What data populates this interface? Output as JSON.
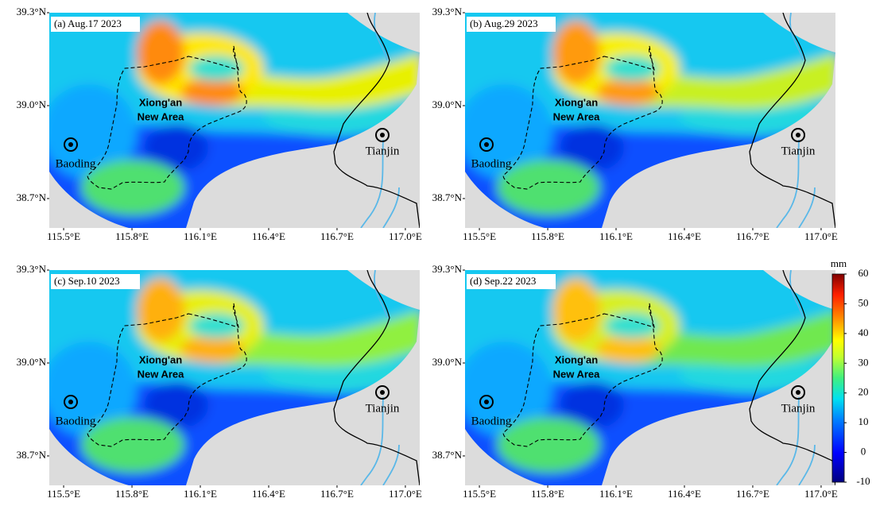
{
  "map": {
    "xlim": [
      115.437,
      117.063
    ],
    "ylim": [
      38.605,
      39.3
    ],
    "xticks": [
      {
        "value": 115.5,
        "label": "115.5°E"
      },
      {
        "value": 115.8,
        "label": "115.8°E"
      },
      {
        "value": 116.1,
        "label": "116.1°E"
      },
      {
        "value": 116.4,
        "label": "116.4°E"
      },
      {
        "value": 116.7,
        "label": "116.7°E"
      },
      {
        "value": 117.0,
        "label": "117.0°E"
      }
    ],
    "yticks": [
      {
        "value": 38.7,
        "label": "38.7°N"
      },
      {
        "value": 39.0,
        "label": "39.0°N"
      },
      {
        "value": 39.3,
        "label": "39.3°N"
      }
    ]
  },
  "panels": [
    {
      "title": "(a) Aug.17 2023"
    },
    {
      "title": "(b) Aug.29 2023"
    },
    {
      "title": "(c) Sep.10 2023"
    },
    {
      "title": "(d) Sep.22 2023"
    }
  ],
  "places": {
    "xiongan_line1": "Xiong'an",
    "xiongan_line2": "New Area",
    "baoding": "Baoding",
    "tianjin": "Tianjin"
  },
  "colorbar": {
    "unit": "mm",
    "lim": [
      -10,
      60
    ],
    "ticks": [
      -10,
      0,
      10,
      20,
      30,
      40,
      50,
      60
    ]
  }
}
